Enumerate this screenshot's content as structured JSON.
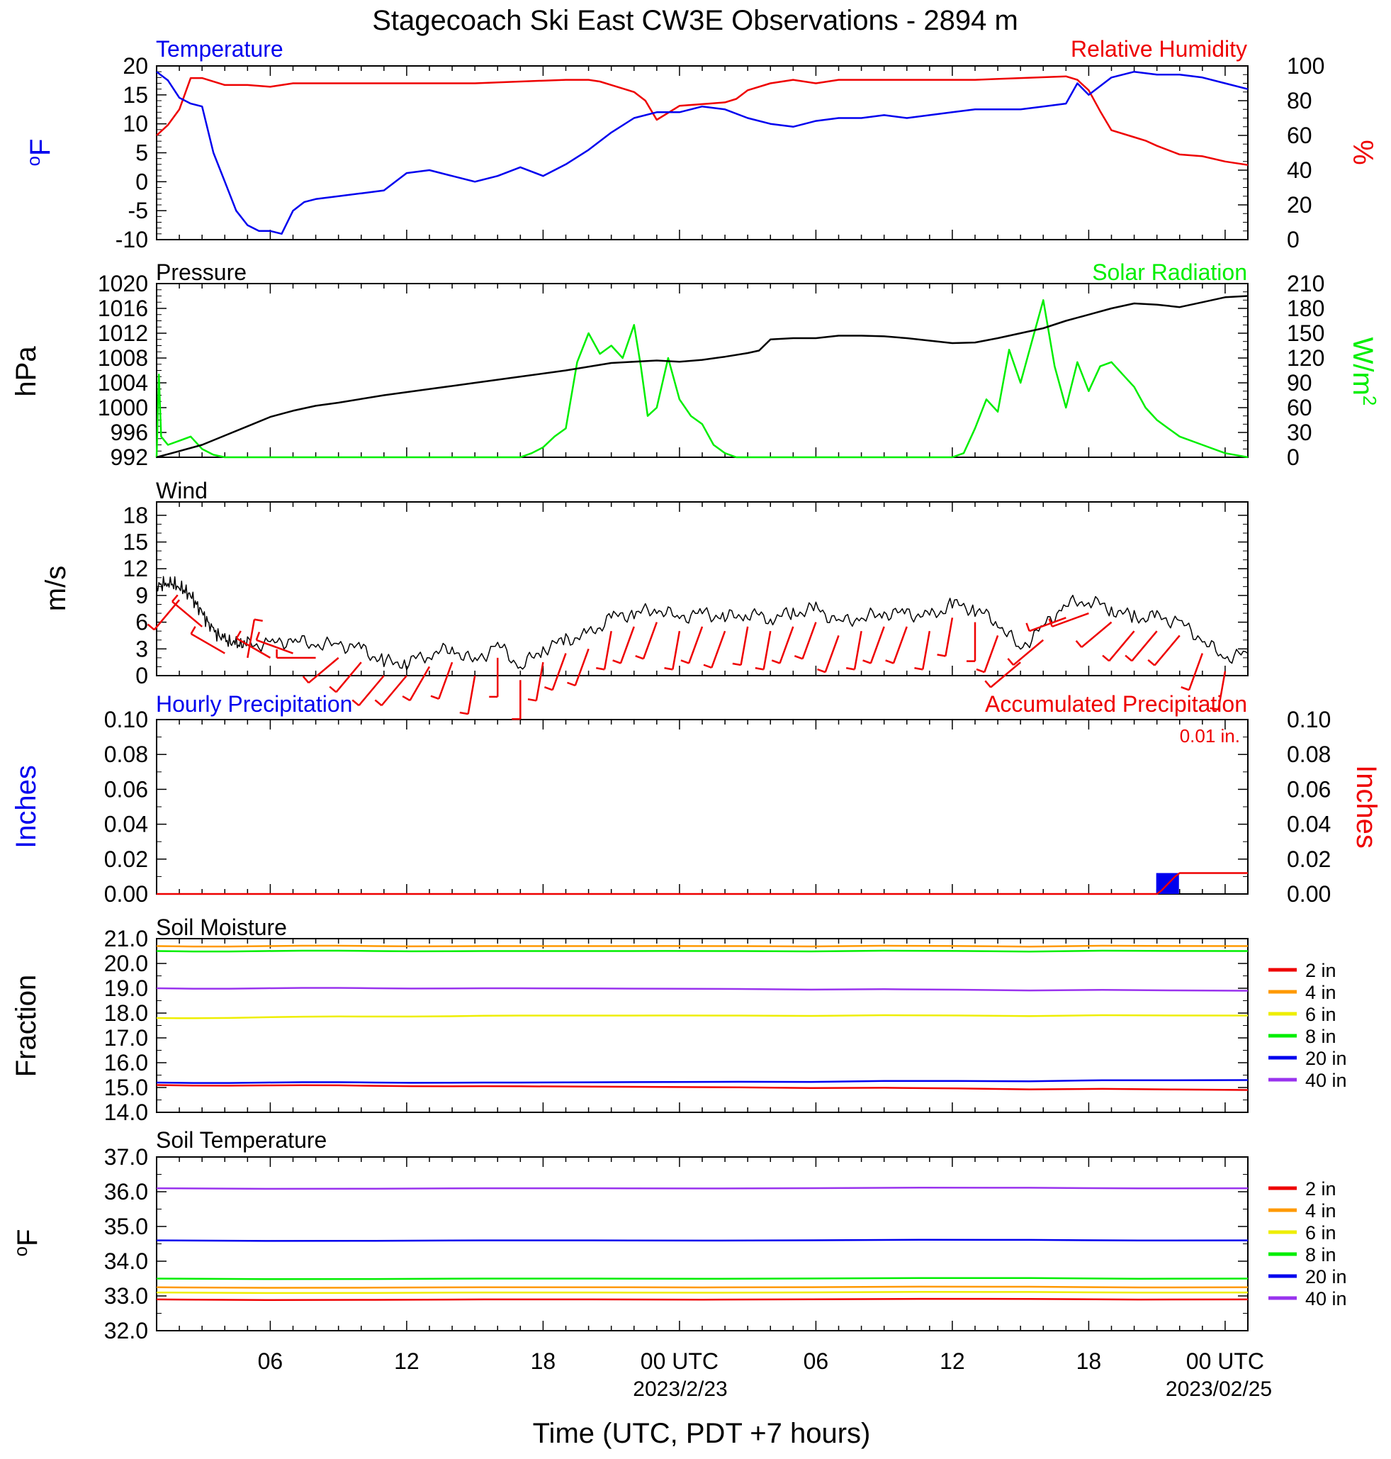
{
  "title": "Stagecoach Ski East CW3E Observations - 2894 m",
  "colors": {
    "blue": "#0000ee",
    "red": "#ee0000",
    "green": "#00ee00",
    "black": "#000000",
    "orange": "#ff9900",
    "yellow": "#eeee00",
    "purple": "#9933ee"
  },
  "xaxis": {
    "label": "Time (UTC, PDT +7 hours)",
    "range_hours": [
      0,
      48
    ],
    "ticks": [
      {
        "h": 5,
        "label": "06"
      },
      {
        "h": 11,
        "label": "12"
      },
      {
        "h": 17,
        "label": "18"
      },
      {
        "h": 23,
        "label": "00 UTC"
      },
      {
        "h": 29,
        "label": "06"
      },
      {
        "h": 35,
        "label": "12"
      },
      {
        "h": 41,
        "label": "18"
      },
      {
        "h": 47,
        "label": "00 UTC"
      }
    ],
    "dates": [
      {
        "h": 23,
        "label": "2023/2/23"
      },
      {
        "h": 47,
        "label": "2023/02/25"
      }
    ]
  },
  "panel_labels": {
    "temperature": "Temperature",
    "humidity": "Relative Humidity",
    "pressure": "Pressure",
    "solar": "Solar Radiation",
    "wind": "Wind",
    "hourly_precip": "Hourly Precipitation",
    "accum_precip": "Accumulated Precipitation",
    "accum_total": "0.01 in.",
    "soil_moisture": "Soil Moisture",
    "soil_temp": "Soil Temperature"
  },
  "axis_units": {
    "temp": "oF",
    "rh": "%",
    "pressure": "hPa",
    "solar": "W/m2",
    "wind": "m/s",
    "precip_left": "Inches",
    "precip_right": "Inches",
    "soil_moisture": "Fraction",
    "soil_temp": "oF"
  },
  "legend": [
    "2 in",
    "4 in",
    "6 in",
    "8 in",
    "20 in",
    "40 in"
  ],
  "chart_data": [
    {
      "type": "line",
      "title": "Temperature / Relative Humidity",
      "ylim_left": [
        -10,
        20
      ],
      "yticks_left": [
        -10,
        -5,
        0,
        5,
        10,
        15,
        20
      ],
      "ylim_right": [
        0,
        100
      ],
      "yticks_right": [
        0,
        20,
        40,
        60,
        80,
        100
      ],
      "series": [
        {
          "name": "Temperature",
          "axis": "left",
          "x": [
            0,
            0.5,
            1,
            1.5,
            2,
            2.5,
            3,
            3.5,
            4,
            4.5,
            5,
            5.5,
            6,
            6.5,
            7,
            8,
            9,
            10,
            11,
            12,
            13,
            14,
            15,
            16,
            17,
            18,
            19,
            20,
            21,
            22,
            23,
            24,
            25,
            26,
            27,
            28,
            29,
            30,
            31,
            32,
            33,
            34,
            35,
            36,
            37,
            38,
            39,
            40,
            40.5,
            41,
            42,
            43,
            44,
            45,
            46,
            47,
            48
          ],
          "y": [
            19,
            17.5,
            14.5,
            13.5,
            13,
            5,
            0,
            -5,
            -7.5,
            -8.5,
            -8.5,
            -9,
            -5,
            -3.5,
            -3,
            -2.5,
            -2,
            -1.5,
            1.5,
            2,
            1,
            0,
            1,
            2.5,
            1,
            3,
            5.5,
            8.5,
            11,
            12,
            12,
            13,
            12.5,
            11,
            10,
            9.5,
            10.5,
            11,
            11,
            11.5,
            11,
            11.5,
            12,
            12.5,
            12.5,
            12.5,
            13,
            13.5,
            17,
            15,
            18,
            19,
            18.5,
            18.5,
            18,
            17,
            16
          ]
        },
        {
          "name": "Relative Humidity",
          "axis": "right",
          "x": [
            0,
            0.5,
            1,
            1.5,
            2,
            3,
            4,
            5,
            6,
            8,
            10,
            12,
            14,
            16,
            18,
            19,
            19.5,
            20,
            21,
            21.5,
            22,
            22.5,
            23,
            24,
            25,
            25.5,
            26,
            27,
            28,
            29,
            30,
            32,
            34,
            36,
            38,
            40,
            40.5,
            41,
            41.5,
            42,
            43,
            43.5,
            44,
            45,
            46,
            47,
            48
          ],
          "y": [
            60,
            66,
            75,
            93,
            93,
            89,
            89,
            88,
            90,
            90,
            90,
            90,
            90,
            91,
            92,
            92,
            91,
            89,
            85,
            80,
            69,
            73,
            77,
            78,
            79,
            81,
            86,
            90,
            92,
            90,
            92,
            92,
            92,
            92,
            93,
            94,
            92,
            86,
            74,
            63,
            59,
            57,
            54,
            49,
            48,
            45,
            43
          ]
        }
      ]
    },
    {
      "type": "line",
      "title": "Pressure / Solar Radiation",
      "ylim_left": [
        992,
        1020
      ],
      "yticks_left": [
        992,
        996,
        1000,
        1004,
        1008,
        1012,
        1016,
        1020
      ],
      "ylim_right": [
        0,
        210
      ],
      "yticks_right": [
        0,
        30,
        60,
        90,
        120,
        150,
        180,
        210
      ],
      "series": [
        {
          "name": "Pressure",
          "axis": "left",
          "x": [
            0,
            1,
            2,
            3,
            4,
            5,
            6,
            7,
            8,
            10,
            12,
            14,
            16,
            18,
            20,
            22,
            23,
            24,
            25,
            26,
            26.5,
            27,
            28,
            29,
            30,
            31,
            32,
            33,
            34,
            35,
            36,
            37,
            38,
            39,
            40,
            41,
            42,
            43,
            44,
            45,
            46,
            47,
            48
          ],
          "y": [
            992,
            993,
            994,
            995.5,
            997,
            998.5,
            999.5,
            1000.3,
            1000.8,
            1002,
            1003,
            1004,
            1005,
            1006,
            1007.2,
            1007.6,
            1007.4,
            1007.7,
            1008.2,
            1008.8,
            1009.2,
            1011,
            1011.2,
            1011.2,
            1011.6,
            1011.6,
            1011.5,
            1011.2,
            1010.8,
            1010.4,
            1010.5,
            1011.2,
            1012,
            1012.8,
            1014,
            1015,
            1016,
            1016.8,
            1016.6,
            1016.2,
            1017,
            1017.8,
            1018
          ]
        },
        {
          "name": "Solar Radiation",
          "axis": "right",
          "x": [
            0,
            0.1,
            0.2,
            0.5,
            1,
            1.5,
            2,
            2.5,
            3,
            16,
            16.5,
            17,
            17.5,
            18,
            18.5,
            19,
            19.5,
            20,
            20.5,
            21,
            21.3,
            21.6,
            22,
            22.5,
            23,
            23.5,
            24,
            24.5,
            25,
            25.5,
            26,
            27,
            35,
            35.5,
            36,
            36.5,
            37,
            37.5,
            38,
            38.5,
            39,
            39.5,
            40,
            40.5,
            41,
            41.5,
            42,
            42.5,
            43,
            43.5,
            44,
            44.5,
            45,
            46,
            47,
            48
          ],
          "y": [
            0,
            100,
            25,
            15,
            20,
            25,
            10,
            3,
            0,
            0,
            5,
            12,
            25,
            35,
            115,
            150,
            125,
            135,
            120,
            160,
            110,
            50,
            60,
            120,
            70,
            50,
            40,
            15,
            5,
            0,
            0,
            0,
            0,
            5,
            35,
            70,
            55,
            130,
            90,
            140,
            190,
            110,
            60,
            115,
            80,
            110,
            115,
            100,
            85,
            60,
            45,
            35,
            25,
            15,
            5,
            0
          ]
        }
      ]
    },
    {
      "type": "line",
      "title": "Wind",
      "ylim": [
        0,
        19.5
      ],
      "yticks": [
        0,
        3,
        6,
        9,
        12,
        15,
        18
      ],
      "series": [
        {
          "name": "Wind Speed",
          "x": [
            0,
            0.5,
            1,
            1.5,
            2,
            2.5,
            3,
            3.5,
            4,
            5,
            6,
            7,
            8,
            9,
            10,
            11,
            12,
            13,
            14,
            15,
            16,
            17,
            18,
            19,
            20,
            21,
            22,
            23,
            24,
            25,
            26,
            27,
            28,
            29,
            30,
            31,
            32,
            33,
            34,
            35,
            36,
            37,
            38,
            39,
            40,
            41,
            42,
            43,
            44,
            45,
            46,
            47,
            48
          ],
          "y": [
            10,
            10.5,
            10,
            9,
            7,
            5,
            4,
            3.5,
            3.5,
            3.5,
            4,
            3.5,
            3.5,
            3,
            1.5,
            1.5,
            2.5,
            3,
            1.5,
            3.5,
            1,
            3,
            4,
            4.5,
            6.5,
            7,
            7.5,
            6.5,
            7,
            6.5,
            7,
            6.5,
            7,
            7.5,
            6,
            6.5,
            7,
            7,
            6.5,
            8,
            7.5,
            6,
            3,
            5.5,
            8,
            8.5,
            7.5,
            6.5,
            6.5,
            6,
            4,
            2,
            2.5
          ]
        },
        {
          "name": "Wind Barbs (direction, deg)",
          "x": [
            1,
            2,
            3,
            4,
            5,
            6,
            7,
            8,
            9,
            10,
            11,
            12,
            13,
            14,
            15,
            16,
            17,
            18,
            19,
            20,
            21,
            22,
            23,
            24,
            25,
            26,
            27,
            28,
            29,
            30,
            31,
            32,
            33,
            34,
            35,
            36,
            37,
            38,
            39,
            40,
            41,
            42,
            43,
            44,
            45,
            46,
            47
          ],
          "y": [
            220,
            310,
            300,
            10,
            300,
            290,
            270,
            230,
            220,
            220,
            220,
            210,
            200,
            190,
            180,
            180,
            190,
            200,
            200,
            190,
            200,
            200,
            190,
            200,
            200,
            190,
            190,
            200,
            200,
            200,
            190,
            200,
            200,
            190,
            190,
            180,
            200,
            230,
            230,
            250,
            250,
            230,
            220,
            220,
            220,
            200,
            190
          ]
        }
      ]
    },
    {
      "type": "bar",
      "title": "Hourly / Accumulated Precipitation",
      "ylim": [
        0,
        0.1
      ],
      "yticks": [
        0.0,
        0.02,
        0.04,
        0.06,
        0.08,
        0.1
      ],
      "hourly": {
        "name": "Hourly Precipitation",
        "x": [
          44
        ],
        "values": [
          0.012
        ]
      },
      "accumulated": {
        "name": "Accumulated Precipitation",
        "x": [
          0,
          44,
          44.2,
          44.5,
          44.8,
          45,
          48
        ],
        "y": [
          0,
          0,
          0.002,
          0.006,
          0.01,
          0.012,
          0.012
        ]
      }
    },
    {
      "type": "line",
      "title": "Soil Moisture",
      "ylim": [
        14,
        21
      ],
      "yticks": [
        14.0,
        15.0,
        16.0,
        17.0,
        18.0,
        19.0,
        20.0,
        21.0
      ],
      "series": [
        {
          "name": "2 in",
          "x": [
            0,
            16,
            48
          ],
          "y": [
            15.1,
            15.05,
            14.9
          ]
        },
        {
          "name": "4 in",
          "x": [
            0,
            16,
            48
          ],
          "y": [
            20.7,
            20.7,
            20.7
          ]
        },
        {
          "name": "6 in",
          "x": [
            0,
            16,
            48
          ],
          "y": [
            17.8,
            17.9,
            17.9
          ]
        },
        {
          "name": "8 in",
          "x": [
            0,
            16,
            48
          ],
          "y": [
            20.5,
            20.5,
            20.5
          ]
        },
        {
          "name": "20 in",
          "x": [
            0,
            16,
            48
          ],
          "y": [
            15.2,
            15.2,
            15.3
          ]
        },
        {
          "name": "40 in",
          "x": [
            0,
            16,
            48
          ],
          "y": [
            19.0,
            19.0,
            18.9
          ]
        }
      ]
    },
    {
      "type": "line",
      "title": "Soil Temperature",
      "ylim": [
        32,
        37
      ],
      "yticks": [
        32.0,
        33.0,
        34.0,
        35.0,
        36.0,
        37.0
      ],
      "series": [
        {
          "name": "2 in",
          "x": [
            0,
            48
          ],
          "y": [
            32.9,
            32.9
          ]
        },
        {
          "name": "4 in",
          "x": [
            0,
            48
          ],
          "y": [
            33.25,
            33.25
          ]
        },
        {
          "name": "6 in",
          "x": [
            0,
            48
          ],
          "y": [
            33.1,
            33.1
          ]
        },
        {
          "name": "8 in",
          "x": [
            0,
            48
          ],
          "y": [
            33.5,
            33.5
          ]
        },
        {
          "name": "20 in",
          "x": [
            0,
            48
          ],
          "y": [
            34.6,
            34.6
          ]
        },
        {
          "name": "40 in",
          "x": [
            0,
            48
          ],
          "y": [
            36.1,
            36.1
          ]
        }
      ]
    }
  ]
}
